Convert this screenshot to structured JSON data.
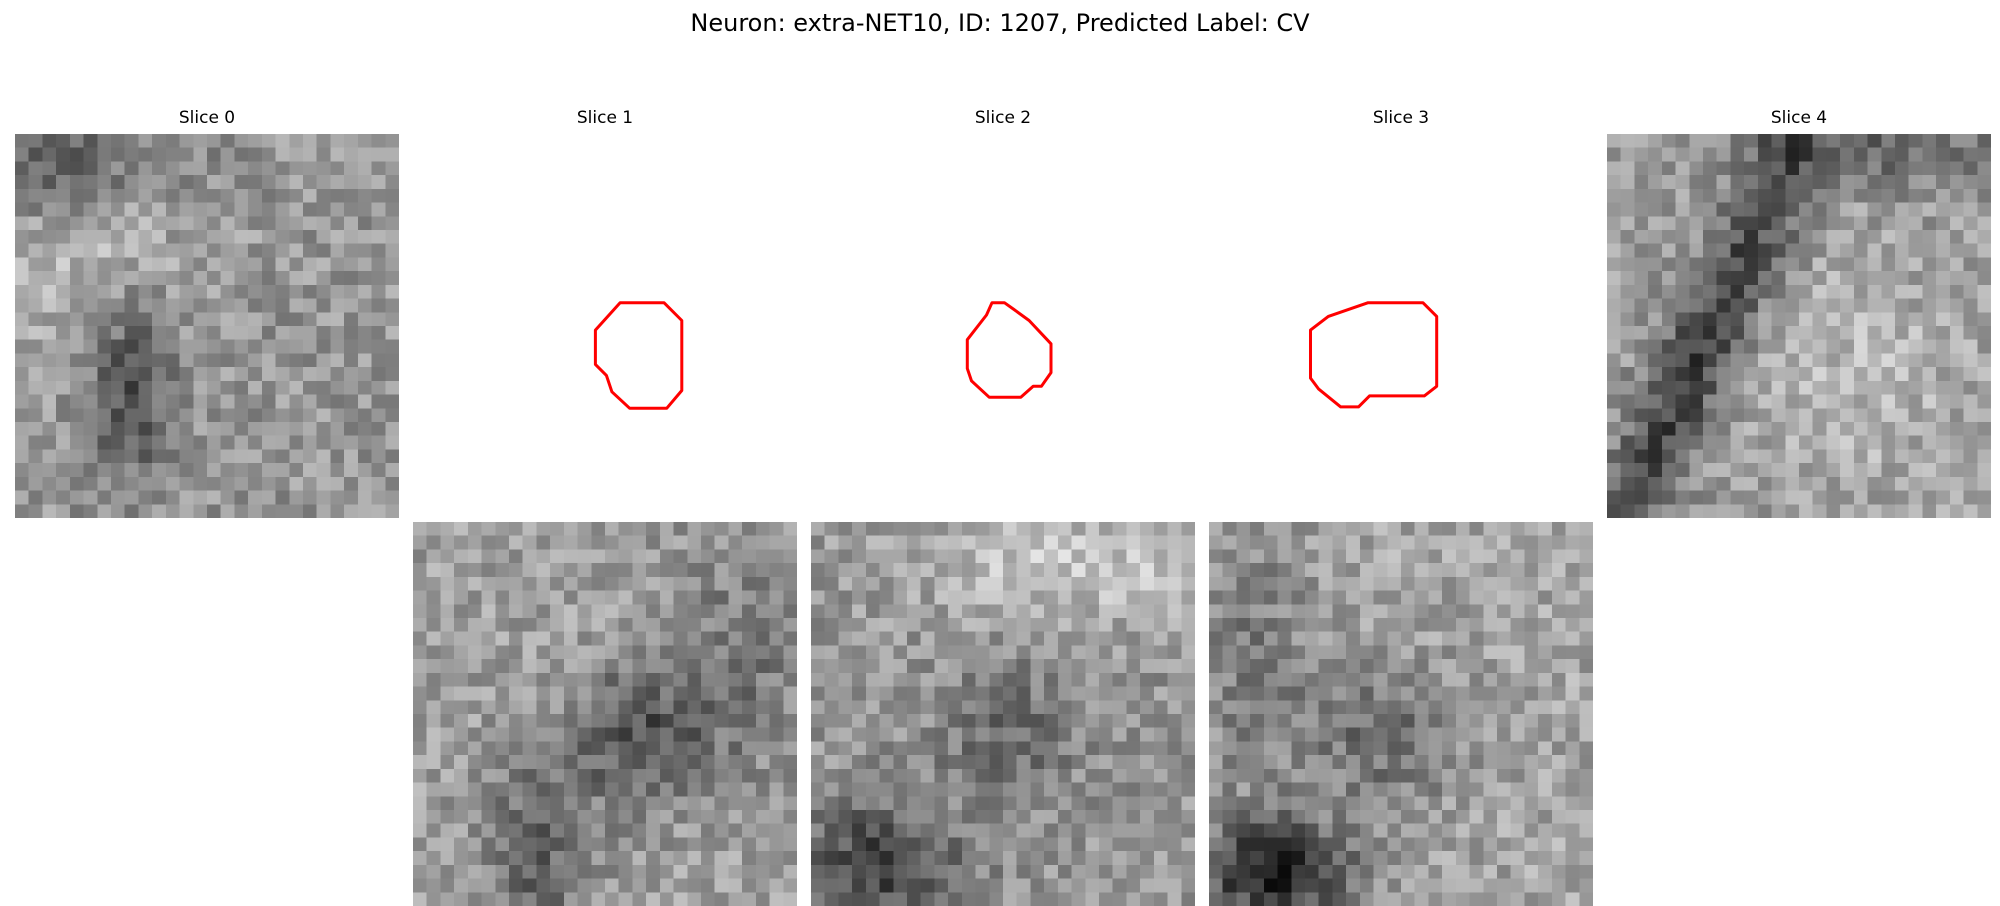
{
  "figure": {
    "title": "Neuron: extra-NET10, ID: 1207, Predicted Label: CV"
  },
  "slices": [
    {
      "label": "Slice 0",
      "roi": null
    },
    {
      "label": "Slice 1",
      "roi": [
        [
          15.1,
          12.3
        ],
        [
          18.3,
          12.3
        ],
        [
          19.6,
          13.6
        ],
        [
          19.6,
          18.7
        ],
        [
          18.5,
          20.0
        ],
        [
          15.8,
          20.0
        ],
        [
          14.5,
          18.8
        ],
        [
          14.1,
          17.6
        ],
        [
          13.3,
          16.8
        ],
        [
          13.3,
          14.3
        ]
      ]
    },
    {
      "label": "Slice 2",
      "roi": [
        [
          13.2,
          12.3
        ],
        [
          14.1,
          12.3
        ],
        [
          14.8,
          12.8
        ],
        [
          15.9,
          13.6
        ],
        [
          17.5,
          15.3
        ],
        [
          17.5,
          17.4
        ],
        [
          16.8,
          18.4
        ],
        [
          16.2,
          18.4
        ],
        [
          15.3,
          19.2
        ],
        [
          13.0,
          19.2
        ],
        [
          11.7,
          18.0
        ],
        [
          11.4,
          17.1
        ],
        [
          11.4,
          15.0
        ],
        [
          12.8,
          13.2
        ]
      ]
    },
    {
      "label": "Slice 3",
      "roi": [
        [
          11.6,
          12.3
        ],
        [
          15.6,
          12.3
        ],
        [
          16.6,
          13.3
        ],
        [
          16.6,
          18.4
        ],
        [
          15.7,
          19.1
        ],
        [
          11.7,
          19.1
        ],
        [
          10.9,
          19.9
        ],
        [
          9.6,
          19.9
        ],
        [
          8.0,
          18.6
        ],
        [
          7.4,
          17.8
        ],
        [
          7.4,
          14.3
        ],
        [
          8.7,
          13.3
        ]
      ]
    },
    {
      "label": "Slice 4",
      "roi": null
    }
  ],
  "colors": {
    "contour": "#ff0000"
  }
}
